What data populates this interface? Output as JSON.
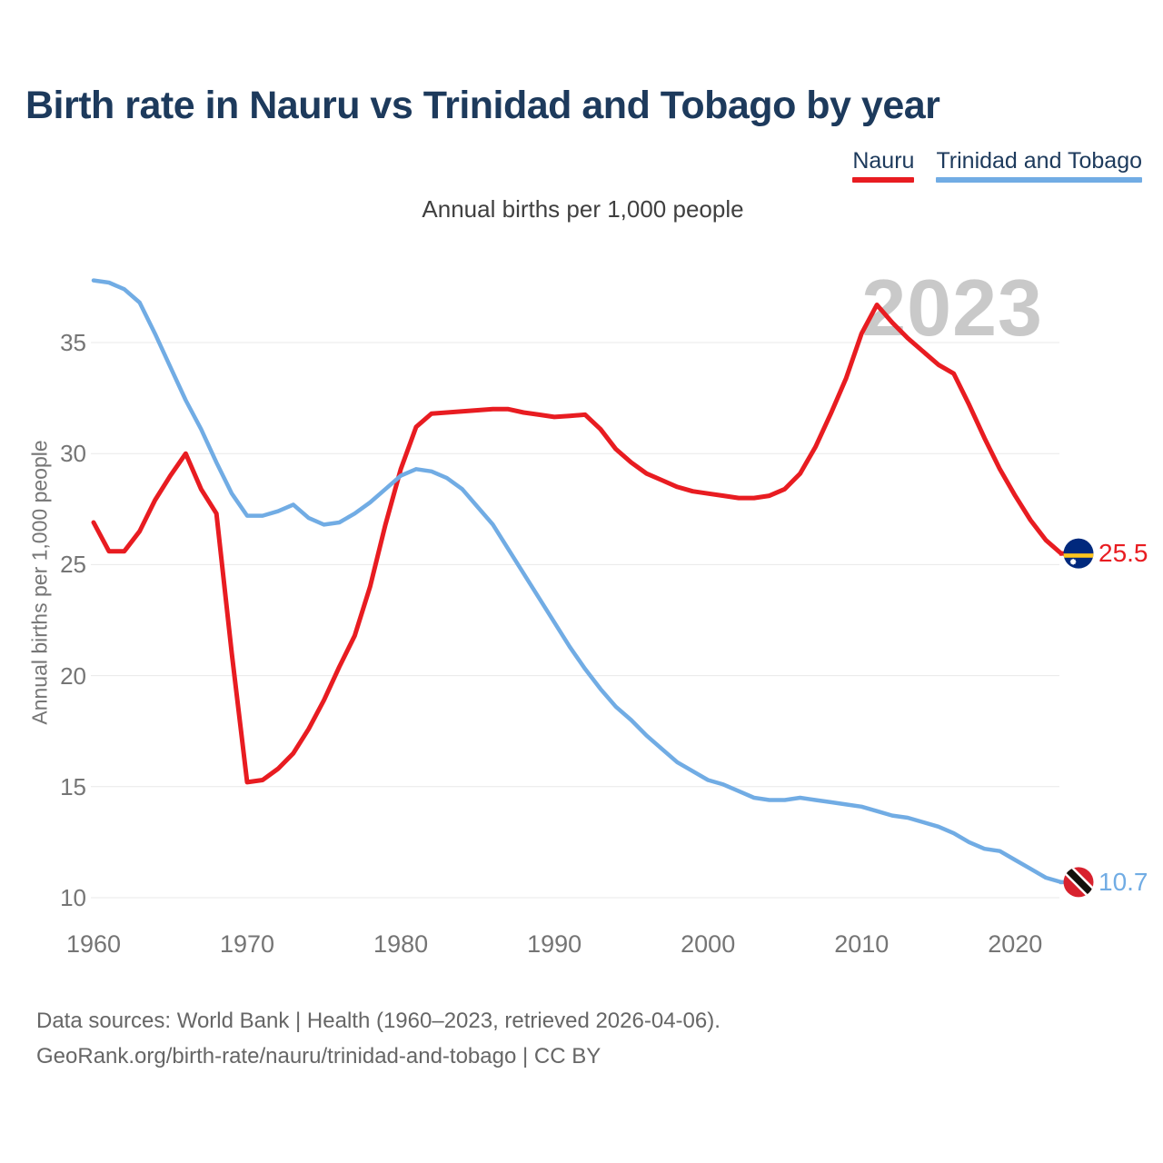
{
  "header": {
    "title": "Birth rate in Nauru vs Trinidad and Tobago by year"
  },
  "legend": [
    {
      "label": "Nauru",
      "color": "#e81c21"
    },
    {
      "label": "Trinidad and Tobago",
      "color": "#71ace4"
    }
  ],
  "chart_data": {
    "type": "line",
    "title": "Birth rate in Nauru vs Trinidad and Tobago by year",
    "subtitle": "Annual births per 1,000 people",
    "ylabel": "Annual births per 1,000 people",
    "watermark": "2023",
    "grid": "horizontal",
    "x_ticks": [
      1960,
      1970,
      1980,
      1990,
      2000,
      2010,
      2020
    ],
    "y_ticks": [
      35,
      30,
      25,
      20,
      15,
      10
    ],
    "ylim": [
      10,
      38
    ],
    "xlim": [
      1960,
      2023
    ],
    "x": [
      1960,
      1961,
      1962,
      1963,
      1964,
      1965,
      1966,
      1967,
      1968,
      1969,
      1970,
      1971,
      1972,
      1973,
      1974,
      1975,
      1976,
      1977,
      1978,
      1979,
      1980,
      1981,
      1982,
      1983,
      1984,
      1985,
      1986,
      1987,
      1988,
      1989,
      1990,
      1991,
      1992,
      1993,
      1994,
      1995,
      1996,
      1997,
      1998,
      1999,
      2000,
      2001,
      2002,
      2003,
      2004,
      2005,
      2006,
      2007,
      2008,
      2009,
      2010,
      2011,
      2012,
      2013,
      2014,
      2015,
      2016,
      2017,
      2018,
      2019,
      2020,
      2021,
      2022,
      2023
    ],
    "series": [
      {
        "name": "Nauru",
        "color": "#e81c21",
        "flag": "nauru",
        "end_label": "25.5",
        "end_value": 25.5,
        "values": [
          26.9,
          25.6,
          25.6,
          26.5,
          27.9,
          29.0,
          30.0,
          28.4,
          27.3,
          21.0,
          15.2,
          15.3,
          15.8,
          16.5,
          17.6,
          18.9,
          20.4,
          21.8,
          24.0,
          26.8,
          29.3,
          31.2,
          31.8,
          31.85,
          31.9,
          31.95,
          32.0,
          32.0,
          31.85,
          31.75,
          31.65,
          31.7,
          31.75,
          31.1,
          30.2,
          29.6,
          29.1,
          28.8,
          28.5,
          28.3,
          28.2,
          28.1,
          28.0,
          28.0,
          28.1,
          28.4,
          29.1,
          30.3,
          31.8,
          33.4,
          35.4,
          36.7,
          35.9,
          35.2,
          34.6,
          34.0,
          33.6,
          32.2,
          30.7,
          29.3,
          28.1,
          27.0,
          26.1,
          25.5
        ]
      },
      {
        "name": "Trinidad and Tobago",
        "color": "#71ace4",
        "flag": "trinidad-and-tobago",
        "end_label": "10.7",
        "end_value": 10.7,
        "values": [
          37.8,
          37.7,
          37.4,
          36.8,
          35.4,
          33.9,
          32.4,
          31.1,
          29.6,
          28.2,
          27.2,
          27.2,
          27.4,
          27.7,
          27.1,
          26.8,
          26.9,
          27.3,
          27.8,
          28.4,
          29.0,
          29.3,
          29.2,
          28.9,
          28.4,
          27.6,
          26.8,
          25.7,
          24.6,
          23.5,
          22.4,
          21.3,
          20.3,
          19.4,
          18.6,
          18.0,
          17.3,
          16.7,
          16.1,
          15.7,
          15.3,
          15.1,
          14.8,
          14.5,
          14.4,
          14.4,
          14.5,
          14.4,
          14.3,
          14.2,
          14.1,
          13.9,
          13.7,
          13.6,
          13.4,
          13.2,
          12.9,
          12.5,
          12.2,
          12.1,
          11.7,
          11.3,
          10.9,
          10.7
        ]
      }
    ]
  },
  "footer": {
    "line1": "Data sources: World Bank | Health (1960–2023, retrieved 2026-04-06).",
    "line2": "GeoRank.org/birth-rate/nauru/trinidad-and-tobago | CC BY"
  }
}
